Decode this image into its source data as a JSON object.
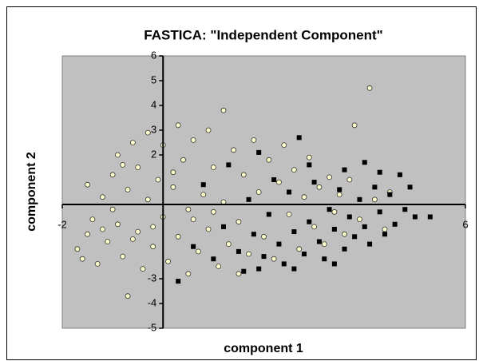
{
  "chart_data": {
    "type": "scatter",
    "title": "FASTICA: \"Independent Component\"",
    "x_label": "component 1",
    "y_label": "component 2",
    "xlim": [
      -2,
      6
    ],
    "ylim": [
      -5,
      6
    ],
    "xticks": [
      -2,
      6
    ],
    "yticks": [
      6,
      5,
      4,
      3,
      2,
      -3,
      -4,
      -5
    ],
    "grid": false,
    "background": "#c0c0c0",
    "series": [
      {
        "color": "#ffffcc",
        "marker": "circle",
        "x": [
          -1.7,
          -1.6,
          -1.5,
          -1.4,
          -1.3,
          -1.2,
          -1.1,
          -1.0,
          -0.9,
          -0.9,
          -0.8,
          -0.7,
          -0.7,
          -0.6,
          -0.5,
          -0.5,
          -0.4,
          -0.3,
          -0.3,
          -0.2,
          -0.1,
          0.0,
          0.0,
          0.1,
          0.2,
          0.3,
          0.3,
          0.4,
          0.5,
          0.5,
          0.6,
          0.7,
          0.8,
          0.9,
          0.9,
          1.0,
          1.1,
          1.2,
          1.2,
          1.3,
          1.4,
          1.5,
          1.5,
          1.6,
          1.7,
          1.8,
          1.9,
          2.0,
          2.1,
          2.2,
          2.3,
          2.4,
          2.5,
          2.6,
          2.7,
          2.8,
          2.9,
          3.0,
          3.1,
          3.2,
          3.3,
          3.4,
          3.5,
          3.6,
          3.7,
          3.8,
          3.9,
          4.1,
          4.2,
          4.4,
          4.5,
          -1.5,
          -1.0,
          -0.8,
          -0.2,
          0.6,
          1.0,
          -0.6,
          0.2,
          -1.2
        ],
        "values": [
          -1.8,
          -2.2,
          -1.2,
          -0.6,
          -2.4,
          0.3,
          -1.5,
          1.2,
          -0.8,
          2.0,
          -2.1,
          0.6,
          -3.7,
          2.5,
          -1.1,
          1.5,
          -2.6,
          0.2,
          2.9,
          -1.7,
          1.0,
          -0.5,
          2.4,
          -2.3,
          0.7,
          3.2,
          -1.3,
          1.8,
          -0.2,
          -2.8,
          2.6,
          -1.9,
          0.4,
          3.0,
          -1.0,
          1.5,
          -2.5,
          3.8,
          0.1,
          -1.6,
          2.2,
          -0.7,
          -2.8,
          1.2,
          -2.0,
          2.6,
          0.5,
          -1.3,
          1.8,
          -2.2,
          0.9,
          2.4,
          -0.4,
          1.4,
          -1.8,
          0.3,
          1.9,
          -0.9,
          0.7,
          -1.6,
          1.1,
          -0.3,
          0.4,
          -1.2,
          1.0,
          3.2,
          -0.6,
          4.7,
          0.2,
          -1.0,
          0.5,
          0.8,
          -0.2,
          1.6,
          -0.9,
          -0.6,
          -0.3,
          -1.4,
          1.3,
          -1.0
        ]
      },
      {
        "color": "#000000",
        "marker": "square",
        "x": [
          0.3,
          0.6,
          0.8,
          1.0,
          1.2,
          1.3,
          1.5,
          1.6,
          1.7,
          1.8,
          1.9,
          2.0,
          2.1,
          2.2,
          2.3,
          2.4,
          2.5,
          2.6,
          2.7,
          2.8,
          2.9,
          3.0,
          3.1,
          3.2,
          3.3,
          3.4,
          3.5,
          3.6,
          3.7,
          3.8,
          3.9,
          4.0,
          4.1,
          4.2,
          4.3,
          4.3,
          4.4,
          4.5,
          4.6,
          4.7,
          4.8,
          4.9,
          5.0,
          5.3,
          4.0,
          3.6,
          2.9,
          1.9,
          2.6,
          3.4
        ],
        "values": [
          -3.1,
          -1.7,
          0.8,
          -2.2,
          -0.9,
          1.6,
          -1.9,
          -2.7,
          0.2,
          -1.2,
          2.1,
          -2.1,
          -0.4,
          1.0,
          -1.6,
          -2.4,
          0.5,
          -1.1,
          2.7,
          -2.0,
          -0.7,
          0.9,
          -1.5,
          -2.2,
          -0.2,
          -1.0,
          0.6,
          -1.8,
          -0.5,
          -1.3,
          0.2,
          -0.9,
          -1.6,
          0.7,
          -0.3,
          1.3,
          -1.2,
          0.4,
          -0.8,
          1.2,
          -0.2,
          0.7,
          -0.5,
          -0.5,
          1.7,
          1.4,
          1.6,
          -2.6,
          -2.6,
          -2.4
        ]
      }
    ]
  }
}
